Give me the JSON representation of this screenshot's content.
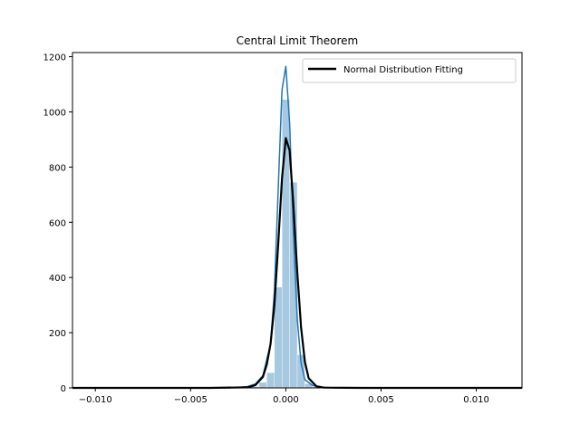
{
  "chart_data": {
    "type": "bar",
    "title": "Central Limit Theorem",
    "xlabel": "",
    "ylabel": "",
    "xlim": [
      -0.0112,
      0.0124
    ],
    "ylim": [
      0,
      1215
    ],
    "x_ticks": [
      -0.01,
      -0.005,
      0.0,
      0.005,
      0.01
    ],
    "x_tick_labels": [
      "−0.010",
      "−0.005",
      "0.000",
      "0.005",
      "0.010"
    ],
    "y_ticks": [
      0,
      200,
      400,
      600,
      800,
      1000,
      1200
    ],
    "y_tick_labels": [
      "0",
      "200",
      "400",
      "600",
      "800",
      "1000",
      "1200"
    ],
    "grid": false,
    "legend_position": "top-right",
    "colors": {
      "histogram": "#a6c8e0",
      "kde": "#1f77b4",
      "normal_fit": "#000000"
    },
    "histogram": {
      "bin_edges": [
        -0.0022,
        -0.0018,
        -0.0014,
        -0.001,
        -0.0006,
        -0.0002,
        0.0002,
        0.0006,
        0.001,
        0.0014,
        0.0018,
        0.0022
      ],
      "values": [
        2,
        5,
        20,
        55,
        365,
        1045,
        745,
        120,
        15,
        4,
        1
      ]
    },
    "series": [
      {
        "name": "",
        "type": "kde",
        "x": [
          -0.0112,
          -0.003,
          -0.0024,
          -0.002,
          -0.0016,
          -0.0012,
          -0.0008,
          -0.0006,
          -0.0004,
          -0.0002,
          0.0,
          0.0002,
          0.0004,
          0.0006,
          0.0008,
          0.001,
          0.0014,
          0.0018,
          0.0024,
          0.003,
          0.0124
        ],
        "y": [
          0,
          0,
          2,
          5,
          14,
          45,
          160,
          350,
          720,
          1080,
          1165,
          960,
          560,
          250,
          90,
          30,
          9,
          3,
          1,
          0,
          0
        ]
      },
      {
        "name": "Normal Distribution Fitting",
        "type": "line",
        "x": [
          -0.0112,
          -0.004,
          -0.002,
          -0.0016,
          -0.0012,
          -0.001,
          -0.0008,
          -0.0006,
          -0.0004,
          -0.0002,
          0.0,
          0.0002,
          0.0004,
          0.0006,
          0.0008,
          0.001,
          0.0012,
          0.0016,
          0.002,
          0.004,
          0.0124
        ],
        "y": [
          0,
          0,
          2,
          10,
          40,
          85,
          160,
          300,
          520,
          760,
          905,
          860,
          660,
          420,
          220,
          95,
          35,
          6,
          1,
          0,
          0
        ]
      }
    ]
  }
}
